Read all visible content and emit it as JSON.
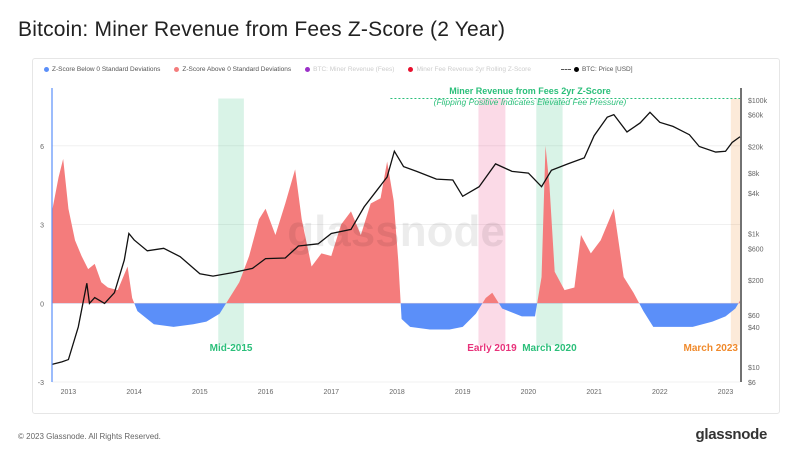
{
  "title": "Bitcoin: Miner Revenue from Fees Z-Score (2 Year)",
  "footer": "© 2023 Glassnode. All Rights Reserved.",
  "logo": "glassnode",
  "watermark": "glassnode",
  "legend": [
    {
      "label": "Z-Score Below 0 Standard Deviations",
      "color": "#5b8ff9",
      "enabled": true
    },
    {
      "label": "Z-Score Above 0 Standard Deviations",
      "color": "#f47c7c",
      "enabled": true
    },
    {
      "label": "BTC: Miner Revenue (Fees)",
      "color": "#9b30c8",
      "enabled": false
    },
    {
      "label": "Miner Fee Revenue 2yr Rolling Z-Score",
      "color": "#e8102e",
      "enabled": false
    },
    {
      "label": "BTC: Price [USD]",
      "color": "#000000",
      "enabled": true
    }
  ],
  "chart_data": {
    "type": "area",
    "x_ticks": [
      "2013",
      "2014",
      "2015",
      "2016",
      "2017",
      "2018",
      "2019",
      "2020",
      "2021",
      "2022",
      "2023"
    ],
    "xlim": [
      2012.75,
      2023.22
    ],
    "y_left": {
      "ticks": [
        "6",
        "3",
        "0",
        "-3"
      ],
      "ylim": [
        -3,
        8.2
      ]
    },
    "y_right": {
      "scale": "log",
      "ticks": [
        "$100k",
        "$60k",
        "$20k",
        "$8k",
        "$4k",
        "$1k",
        "$600",
        "$200",
        "$60",
        "$40",
        "$10",
        "$6"
      ],
      "ylim": [
        6,
        150000
      ]
    },
    "annotation": {
      "title": "Miner Revenue from Fees 2yr Z-Score",
      "subtitle": "(Flipping Positive Indicates Elevated Fee Pressure)",
      "color": "#2bbf7a",
      "level": 7.8
    },
    "highlights": [
      {
        "label": "Mid-2015",
        "from": 2015.28,
        "to": 2015.67,
        "color": "#2bbf7a"
      },
      {
        "label": "Early 2019",
        "from": 2019.24,
        "to": 2019.65,
        "color": "#e8327a"
      },
      {
        "label": "March 2020",
        "from": 2020.12,
        "to": 2020.52,
        "color": "#2bbf7a"
      },
      {
        "label": "March 2023",
        "from": 2023.08,
        "to": 2023.22,
        "color": "#f08a2c"
      }
    ],
    "zscore": {
      "x": [
        2012.75,
        2012.85,
        2012.92,
        2013.0,
        2013.1,
        2013.2,
        2013.3,
        2013.4,
        2013.5,
        2013.6,
        2013.75,
        2013.9,
        2013.97,
        2014.05,
        2014.3,
        2014.6,
        2014.9,
        2015.1,
        2015.3,
        2015.45,
        2015.6,
        2015.75,
        2015.9,
        2016.0,
        2016.15,
        2016.3,
        2016.45,
        2016.55,
        2016.7,
        2016.85,
        2017.0,
        2017.15,
        2017.3,
        2017.45,
        2017.6,
        2017.75,
        2017.85,
        2017.95,
        2018.02,
        2018.07,
        2018.2,
        2018.5,
        2018.8,
        2019.0,
        2019.2,
        2019.35,
        2019.45,
        2019.6,
        2019.9,
        2020.1,
        2020.2,
        2020.26,
        2020.32,
        2020.4,
        2020.55,
        2020.7,
        2020.8,
        2020.95,
        2021.1,
        2021.3,
        2021.45,
        2021.6,
        2021.75,
        2021.9,
        2022.2,
        2022.5,
        2022.8,
        2023.0,
        2023.15,
        2023.22
      ],
      "values": [
        3.5,
        4.8,
        5.5,
        3.6,
        2.4,
        1.8,
        1.3,
        1.5,
        0.8,
        0.6,
        0.5,
        1.4,
        0.2,
        -0.3,
        -0.8,
        -0.9,
        -0.8,
        -0.7,
        -0.4,
        0.2,
        0.8,
        1.8,
        3.2,
        3.6,
        2.6,
        3.8,
        5.1,
        3.2,
        1.4,
        1.9,
        1.8,
        3.0,
        3.5,
        2.6,
        3.8,
        4.0,
        5.4,
        3.9,
        1.6,
        -0.6,
        -0.9,
        -1.0,
        -1.0,
        -0.9,
        -0.4,
        0.2,
        0.4,
        -0.2,
        -0.5,
        -0.5,
        1.0,
        6.0,
        4.5,
        1.2,
        0.5,
        0.6,
        2.6,
        1.9,
        2.4,
        3.6,
        1.0,
        0.4,
        -0.3,
        -0.9,
        -0.9,
        -0.9,
        -0.7,
        -0.5,
        -0.2,
        0.1
      ]
    },
    "price": {
      "x": [
        2012.75,
        2012.9,
        2013.0,
        2013.15,
        2013.28,
        2013.32,
        2013.4,
        2013.55,
        2013.7,
        2013.85,
        2013.92,
        2014.0,
        2014.2,
        2014.45,
        2014.7,
        2015.0,
        2015.2,
        2015.5,
        2015.8,
        2016.0,
        2016.3,
        2016.5,
        2016.8,
        2017.0,
        2017.3,
        2017.5,
        2017.7,
        2017.85,
        2017.96,
        2018.1,
        2018.3,
        2018.6,
        2018.85,
        2019.0,
        2019.25,
        2019.5,
        2019.75,
        2020.0,
        2020.2,
        2020.35,
        2020.6,
        2020.85,
        2021.0,
        2021.2,
        2021.3,
        2021.5,
        2021.7,
        2021.85,
        2022.0,
        2022.2,
        2022.45,
        2022.6,
        2022.85,
        2023.0,
        2023.1,
        2023.22
      ],
      "values": [
        11,
        12,
        13,
        40,
        180,
        90,
        110,
        90,
        130,
        400,
        1000,
        800,
        550,
        600,
        450,
        250,
        230,
        260,
        300,
        420,
        430,
        650,
        700,
        1000,
        1150,
        2500,
        4500,
        7000,
        17000,
        10000,
        8500,
        6500,
        6300,
        3600,
        5000,
        11000,
        8500,
        8000,
        5000,
        8800,
        11000,
        13500,
        29000,
        55000,
        60000,
        33000,
        45000,
        65000,
        46000,
        40000,
        30000,
        20000,
        16500,
        17000,
        23000,
        28000
      ]
    }
  }
}
